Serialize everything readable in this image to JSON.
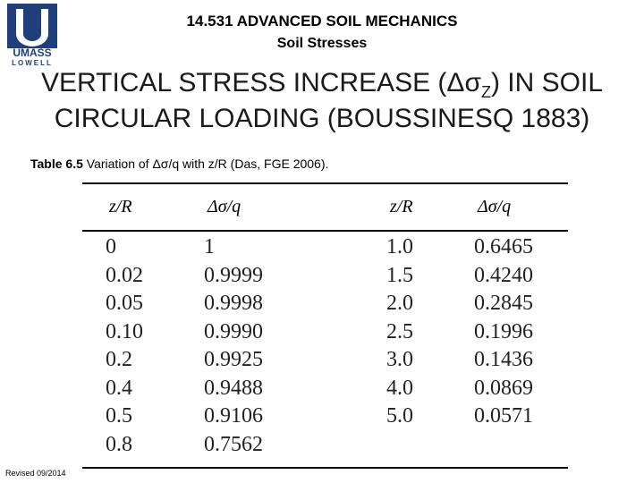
{
  "header": {
    "title": "14.531 ADVANCED SOIL MECHANICS",
    "subtitle": "Soil Stresses",
    "logo": {
      "top": "UMASS",
      "bottom": "LOWELL"
    }
  },
  "heading": {
    "line1": {
      "before": "VERTICAL STRESS INCREASE (Δσ",
      "subscript": "Z",
      "after": ") IN SOIL"
    },
    "line2": "CIRCULAR LOADING (BOUSSINESQ 1883)"
  },
  "caption": {
    "label": "Table 6.5",
    "text": " Variation of Δσ/q with z/R (Das, FGE 2006)."
  },
  "table": {
    "headers": [
      "z/R",
      "Δσ/q",
      "z/R",
      "Δσ/q"
    ],
    "left_rows": [
      [
        "0",
        "1"
      ],
      [
        "0.02",
        "0.9999"
      ],
      [
        "0.05",
        "0.9998"
      ],
      [
        "0.10",
        "0.9990"
      ],
      [
        "0.2",
        "0.9925"
      ],
      [
        "0.4",
        "0.9488"
      ],
      [
        "0.5",
        "0.9106"
      ],
      [
        "0.8",
        "0.7562"
      ]
    ],
    "right_rows": [
      [
        "1.0",
        "0.6465"
      ],
      [
        "1.5",
        "0.4240"
      ],
      [
        "2.0",
        "0.2845"
      ],
      [
        "2.5",
        "0.1996"
      ],
      [
        "3.0",
        "0.1436"
      ],
      [
        "4.0",
        "0.0869"
      ],
      [
        "5.0",
        "0.0571"
      ]
    ]
  },
  "footer": "Revised 09/2014"
}
